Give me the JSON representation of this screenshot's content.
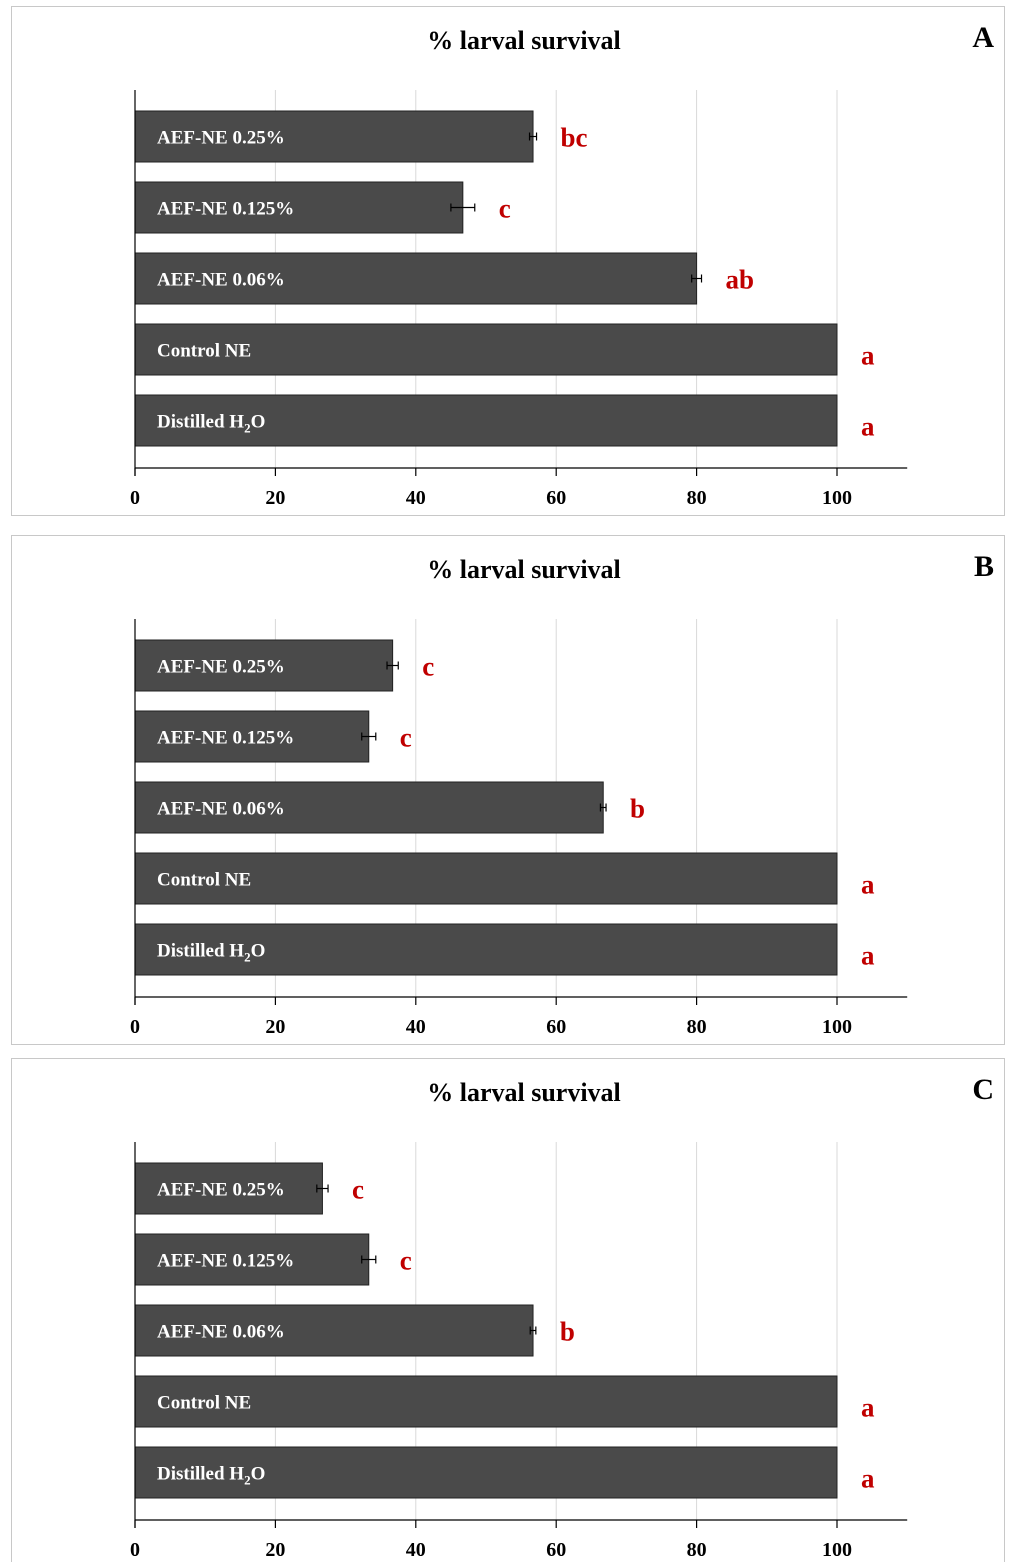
{
  "chart_data": [
    {
      "panel": "A",
      "type": "bar",
      "orientation": "horizontal",
      "title": "% larval survival",
      "categories": [
        "AEF-NE 0.25%",
        "AEF-NE 0.125%",
        "AEF-NE 0.06%",
        "Control NE",
        "Distilled H2O"
      ],
      "values": [
        56.7,
        46.7,
        80,
        100,
        100
      ],
      "errors": [
        0.5,
        1.7,
        0.7,
        0,
        0
      ],
      "significance": [
        "bc",
        "c",
        "ab",
        "a",
        "a"
      ],
      "xticks": [
        0,
        20,
        40,
        60,
        80,
        100
      ],
      "xlim": [
        0,
        110
      ],
      "grid": true,
      "bar_color": "#4a4a4a",
      "label_color": "#c00000"
    },
    {
      "panel": "B",
      "type": "bar",
      "orientation": "horizontal",
      "title": "% larval survival",
      "categories": [
        "AEF-NE 0.25%",
        "AEF-NE 0.125%",
        "AEF-NE 0.06%",
        "Control NE",
        "Distilled H2O"
      ],
      "values": [
        36.7,
        33.3,
        66.7,
        100,
        100
      ],
      "errors": [
        0.8,
        1.0,
        0.4,
        0,
        0
      ],
      "significance": [
        "c",
        "c",
        "b",
        "a",
        "a"
      ],
      "xticks": [
        0,
        20,
        40,
        60,
        80,
        100
      ],
      "xlim": [
        0,
        110
      ],
      "grid": true,
      "bar_color": "#4a4a4a",
      "label_color": "#c00000"
    },
    {
      "panel": "C",
      "type": "bar",
      "orientation": "horizontal",
      "title": "% larval survival",
      "categories": [
        "AEF-NE 0.25%",
        "AEF-NE 0.125%",
        "AEF-NE 0.06%",
        "Control NE",
        "Distilled H2O"
      ],
      "values": [
        26.7,
        33.3,
        56.7,
        100,
        100
      ],
      "errors": [
        0.8,
        1.0,
        0.4,
        0,
        0
      ],
      "significance": [
        "c",
        "c",
        "b",
        "a",
        "a"
      ],
      "xticks": [
        0,
        20,
        40,
        60,
        80,
        100
      ],
      "xlim": [
        0,
        110
      ],
      "grid": true,
      "bar_color": "#4a4a4a",
      "label_color": "#c00000"
    }
  ]
}
